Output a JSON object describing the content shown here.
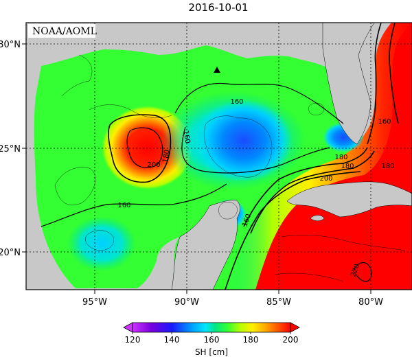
{
  "title": "2016-10-01",
  "credit": "NOAA/AOML",
  "axes": {
    "lon_ticks": [
      "95°W",
      "90°W",
      "85°W",
      "80°W"
    ],
    "lat_ticks": [
      "30°N",
      "25°N",
      "20°N"
    ]
  },
  "contour_labels": [
    "160",
    "160",
    "160",
    "160",
    "180",
    "180",
    "180",
    "200",
    "200",
    "180",
    "160",
    "220"
  ],
  "colorbar": {
    "label": "SH [cm]",
    "ticks": [
      "120",
      "140",
      "160",
      "180",
      "200"
    ],
    "colors": [
      "#cc33ff",
      "#7700dd",
      "#1a1aff",
      "#0099ff",
      "#00e5ff",
      "#00e68a",
      "#33ff33",
      "#b3ff00",
      "#ffee00",
      "#ffaa00",
      "#ff5500",
      "#ff0000"
    ]
  },
  "colors": {
    "land": "#c8c8c8",
    "frame": "#000000",
    "warm_core": "#ff0000",
    "background_water": "#33ff33"
  },
  "marker": "buoy-triangle-icon"
}
